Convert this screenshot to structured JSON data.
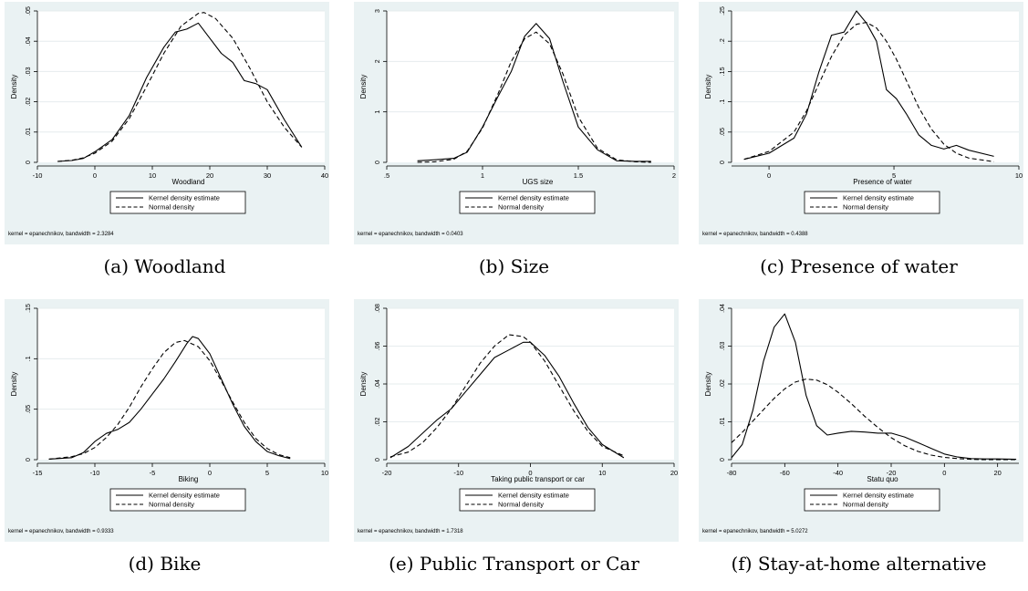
{
  "chart_data": [
    {
      "type": "line",
      "caption": "(a) Woodland",
      "xlabel": "Woodland",
      "ylabel": "Density",
      "xlim": [
        -10,
        40
      ],
      "ylim": [
        0,
        0.05
      ],
      "xticks": [
        -10,
        0,
        10,
        20,
        30,
        40
      ],
      "xtick_labels": [
        "-10",
        "0",
        "10",
        "20",
        "30",
        "40"
      ],
      "yticks": [
        0,
        0.01,
        0.02,
        0.03,
        0.04,
        0.05
      ],
      "ytick_labels": [
        "0",
        ".01",
        ".02",
        ".03",
        ".04",
        ".05"
      ],
      "legend": [
        "Kernel density estimate",
        "Normal density"
      ],
      "note": "kernel = epanechnikov, bandwidth = 2.3284",
      "series": [
        {
          "name": "Kernel density estimate",
          "style": "solid",
          "x": [
            -6.5,
            -4,
            -2,
            0,
            3,
            6,
            9,
            12,
            14,
            16,
            18,
            20,
            22,
            24,
            26,
            28,
            30,
            33,
            36
          ],
          "y": [
            0.0003,
            0.0006,
            0.0013,
            0.0035,
            0.0075,
            0.0155,
            0.028,
            0.038,
            0.043,
            0.044,
            0.046,
            0.041,
            0.036,
            0.033,
            0.027,
            0.026,
            0.024,
            0.014,
            0.005
          ]
        },
        {
          "name": "Normal density",
          "style": "dashed",
          "x": [
            -6.5,
            -4,
            -2,
            0,
            3,
            6,
            9,
            12,
            15,
            18,
            19,
            21,
            24,
            27,
            30,
            33,
            36
          ],
          "y": [
            0.0003,
            0.0007,
            0.0015,
            0.003,
            0.007,
            0.0145,
            0.025,
            0.036,
            0.045,
            0.0492,
            0.0495,
            0.0475,
            0.041,
            0.031,
            0.02,
            0.0115,
            0.005
          ]
        }
      ]
    },
    {
      "type": "line",
      "caption": "(b) Size",
      "xlabel": "UGS size",
      "ylabel": "Density",
      "xlim": [
        0.5,
        2
      ],
      "ylim": [
        0,
        3
      ],
      "xticks": [
        0.5,
        1,
        1.5,
        2
      ],
      "xtick_labels": [
        ".5",
        "1",
        "1.5",
        "2"
      ],
      "yticks": [
        0,
        1,
        2,
        3
      ],
      "ytick_labels": [
        "0",
        "1",
        "2",
        "3"
      ],
      "legend": [
        "Kernel density estimate",
        "Normal density"
      ],
      "note": "kernel = epanechnikov, bandwidth = 0.0403",
      "series": [
        {
          "name": "Kernel density estimate",
          "style": "solid",
          "x": [
            0.66,
            0.75,
            0.85,
            0.92,
            1.0,
            1.08,
            1.15,
            1.22,
            1.28,
            1.35,
            1.42,
            1.5,
            1.6,
            1.7,
            1.8,
            1.88
          ],
          "y": [
            0.03,
            0.05,
            0.08,
            0.2,
            0.7,
            1.3,
            1.8,
            2.5,
            2.75,
            2.45,
            1.6,
            0.7,
            0.25,
            0.03,
            0.02,
            0.02
          ]
        },
        {
          "name": "Normal density",
          "style": "dashed",
          "x": [
            0.66,
            0.75,
            0.85,
            0.92,
            1.0,
            1.08,
            1.15,
            1.22,
            1.28,
            1.35,
            1.42,
            1.5,
            1.6,
            1.7,
            1.8,
            1.88
          ],
          "y": [
            0.0,
            0.01,
            0.06,
            0.22,
            0.68,
            1.35,
            2.0,
            2.45,
            2.58,
            2.35,
            1.75,
            0.9,
            0.28,
            0.05,
            0.01,
            0.0
          ]
        }
      ]
    },
    {
      "type": "line",
      "caption": "(c) Presence of water",
      "xlabel": "Presence of water",
      "ylabel": "Density",
      "xlim": [
        -1.5,
        10
      ],
      "ylim": [
        0,
        0.25
      ],
      "xticks": [
        0,
        5,
        10
      ],
      "xtick_labels": [
        "0",
        "5",
        "10"
      ],
      "yticks": [
        0,
        0.05,
        0.1,
        0.15,
        0.2,
        0.25
      ],
      "ytick_labels": [
        "0",
        ".05",
        ".1",
        ".15",
        ".2",
        ".25"
      ],
      "legend": [
        "Kernel density estimate",
        "Normal density"
      ],
      "note": "kernel = epanechnikov, bandwidth = 0.4388",
      "series": [
        {
          "name": "Kernel density estimate",
          "style": "solid",
          "x": [
            -1,
            0,
            1,
            1.5,
            2,
            2.5,
            3,
            3.5,
            3.9,
            4.3,
            4.7,
            5.1,
            5.5,
            6,
            6.5,
            7,
            7.5,
            8,
            9
          ],
          "y": [
            0.005,
            0.015,
            0.04,
            0.08,
            0.15,
            0.21,
            0.215,
            0.25,
            0.23,
            0.2,
            0.12,
            0.105,
            0.08,
            0.045,
            0.028,
            0.022,
            0.028,
            0.02,
            0.01
          ]
        },
        {
          "name": "Normal density",
          "style": "dashed",
          "x": [
            -1,
            0,
            1,
            1.5,
            2,
            2.5,
            3,
            3.5,
            3.9,
            4.3,
            4.7,
            5.1,
            5.5,
            6,
            6.5,
            7,
            7.5,
            8,
            9
          ],
          "y": [
            0.005,
            0.018,
            0.05,
            0.085,
            0.13,
            0.175,
            0.21,
            0.228,
            0.231,
            0.222,
            0.2,
            0.17,
            0.135,
            0.09,
            0.055,
            0.03,
            0.015,
            0.007,
            0.001
          ]
        }
      ]
    },
    {
      "type": "line",
      "caption": "(d) Bike",
      "xlabel": "Biking",
      "ylabel": "Density",
      "xlim": [
        -15,
        10
      ],
      "ylim": [
        0,
        0.15
      ],
      "xticks": [
        -15,
        -10,
        -5,
        0,
        5,
        10
      ],
      "xtick_labels": [
        "-15",
        "-10",
        "-5",
        "0",
        "5",
        "10"
      ],
      "yticks": [
        0,
        0.05,
        0.1,
        0.15
      ],
      "ytick_labels": [
        "0",
        ".05",
        ".1",
        ".15"
      ],
      "legend": [
        "Kernel density estimate",
        "Normal density"
      ],
      "note": "kernel = epanechnikov, bandwidth = 0.9333",
      "series": [
        {
          "name": "Kernel density estimate",
          "style": "solid",
          "x": [
            -14,
            -12,
            -11,
            -10,
            -9,
            -8,
            -7,
            -6,
            -5,
            -4,
            -3,
            -2,
            -1.5,
            -1,
            0,
            1,
            2,
            3,
            4,
            5,
            6,
            7
          ],
          "y": [
            0.0005,
            0.002,
            0.007,
            0.018,
            0.026,
            0.03,
            0.037,
            0.05,
            0.065,
            0.08,
            0.097,
            0.115,
            0.122,
            0.12,
            0.105,
            0.08,
            0.055,
            0.033,
            0.018,
            0.008,
            0.004,
            0.001
          ]
        },
        {
          "name": "Normal density",
          "style": "dashed",
          "x": [
            -14,
            -12,
            -11,
            -10,
            -9,
            -8,
            -7,
            -6,
            -5,
            -4,
            -3,
            -2.2,
            -1,
            0,
            1,
            2,
            3,
            4,
            5,
            6,
            7
          ],
          "y": [
            0.0005,
            0.003,
            0.006,
            0.012,
            0.022,
            0.035,
            0.052,
            0.072,
            0.09,
            0.106,
            0.116,
            0.118,
            0.112,
            0.098,
            0.078,
            0.057,
            0.037,
            0.021,
            0.011,
            0.005,
            0.002
          ]
        }
      ]
    },
    {
      "type": "line",
      "caption": "(e) Public Transport or Car",
      "xlabel": "Taking public transport or car",
      "ylabel": "Density",
      "xlim": [
        -20,
        20
      ],
      "ylim": [
        0,
        0.08
      ],
      "xticks": [
        -20,
        -10,
        0,
        10,
        20
      ],
      "xtick_labels": [
        "-20",
        "-10",
        "0",
        "10",
        "20"
      ],
      "yticks": [
        0,
        0.02,
        0.04,
        0.06,
        0.08
      ],
      "ytick_labels": [
        "0",
        ".02",
        ".04",
        ".06",
        ".08"
      ],
      "legend": [
        "Kernel density estimate",
        "Normal density"
      ],
      "note": "kernel = epanechnikov, bandwidth = 1.7318",
      "series": [
        {
          "name": "Kernel density estimate",
          "style": "solid",
          "x": [
            -19.5,
            -17,
            -15,
            -13,
            -11,
            -9,
            -7,
            -5,
            -3,
            -1,
            0,
            2,
            4,
            6,
            8,
            10,
            13
          ],
          "y": [
            0.001,
            0.007,
            0.014,
            0.021,
            0.027,
            0.036,
            0.045,
            0.054,
            0.058,
            0.062,
            0.062,
            0.055,
            0.044,
            0.03,
            0.017,
            0.008,
            0.001
          ]
        },
        {
          "name": "Normal density",
          "style": "dashed",
          "x": [
            -19.5,
            -17,
            -15,
            -13,
            -11,
            -9,
            -7,
            -5,
            -3,
            -1,
            0,
            2,
            4,
            6,
            8,
            10,
            13
          ],
          "y": [
            0.0015,
            0.004,
            0.009,
            0.017,
            0.027,
            0.039,
            0.051,
            0.06,
            0.066,
            0.065,
            0.062,
            0.052,
            0.039,
            0.026,
            0.015,
            0.007,
            0.002
          ]
        }
      ]
    },
    {
      "type": "line",
      "caption": "(f) Stay-at-home alternative",
      "xlabel": "Statu quo",
      "ylabel": "Density",
      "xlim": [
        -80,
        28
      ],
      "ylim": [
        0,
        0.04
      ],
      "xticks": [
        -80,
        -60,
        -40,
        -20,
        0,
        20
      ],
      "xtick_labels": [
        "-80",
        "-60",
        "-40",
        "-20",
        "0",
        "20"
      ],
      "yticks": [
        0,
        0.01,
        0.02,
        0.03,
        0.04
      ],
      "ytick_labels": [
        "0",
        ".01",
        ".02",
        ".03",
        ".04"
      ],
      "legend": [
        "Kernel density estimate",
        "Normal density"
      ],
      "note": "kernel = epanechnikov, bandwidth = 5.0272",
      "series": [
        {
          "name": "Kernel density estimate",
          "style": "solid",
          "x": [
            -80,
            -76,
            -72,
            -68,
            -64,
            -60,
            -56,
            -52,
            -48,
            -44,
            -40,
            -35,
            -30,
            -25,
            -20,
            -15,
            -10,
            -5,
            0,
            5,
            10,
            15,
            20,
            27
          ],
          "y": [
            0.0005,
            0.004,
            0.013,
            0.026,
            0.035,
            0.0385,
            0.031,
            0.017,
            0.009,
            0.0065,
            0.007,
            0.0075,
            0.0073,
            0.007,
            0.007,
            0.006,
            0.0045,
            0.003,
            0.0015,
            0.0007,
            0.0003,
            0.0002,
            0.0002,
            0.0001
          ]
        },
        {
          "name": "Normal density",
          "style": "dashed",
          "x": [
            -80,
            -76,
            -72,
            -68,
            -64,
            -60,
            -56,
            -52,
            -48,
            -44,
            -40,
            -35,
            -30,
            -25,
            -20,
            -15,
            -10,
            -5,
            0,
            5,
            10,
            15,
            20,
            27
          ],
          "y": [
            0.0045,
            0.0072,
            0.0102,
            0.0132,
            0.0162,
            0.0187,
            0.0205,
            0.0213,
            0.021,
            0.0198,
            0.0178,
            0.0148,
            0.0115,
            0.0085,
            0.0058,
            0.0037,
            0.0022,
            0.0012,
            0.0006,
            0.0003,
            0.0001,
            0.0,
            0.0,
            0.0
          ]
        }
      ]
    }
  ]
}
